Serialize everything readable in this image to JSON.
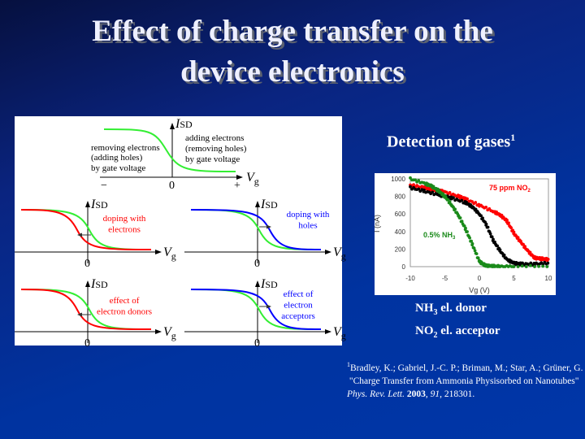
{
  "title": {
    "line1": "Effect of charge transfer on the",
    "line2": "device electronics"
  },
  "diagram": {
    "top": {
      "ylabel": "I",
      "ysub": "SD",
      "xlabel": "V",
      "xsub": "g",
      "minus": "−",
      "zero": "0",
      "plus": "+",
      "left_text": [
        "removing electrons",
        "(adding holes)",
        "by gate voltage"
      ],
      "right_text": [
        "adding electrons",
        "(removing holes)",
        "by gate voltage"
      ]
    },
    "panels": [
      {
        "label": [
          "doping with",
          "electrons"
        ],
        "label_color": "#ff0000",
        "shift_color": "#ff0000"
      },
      {
        "label": [
          "doping with",
          "holes"
        ],
        "label_color": "#0000ff",
        "shift_color": "#0000ff"
      },
      {
        "label": [
          "effect of",
          "electron donors"
        ],
        "label_color": "#ff0000",
        "shift_color": "#ff0000"
      },
      {
        "label": [
          "effect of",
          "electron",
          "acceptors"
        ],
        "label_color": "#0000ff",
        "shift_color": "#0000ff"
      }
    ],
    "axis": {
      "ylabel": "I",
      "ysub": "SD",
      "xlabel": "V",
      "xsub": "g",
      "zero": "0"
    }
  },
  "detection": {
    "heading": "Detection of gases",
    "sup": "1"
  },
  "chart_data": {
    "type": "scatter",
    "xlabel": "Vg (V)",
    "ylabel": "I (nA)",
    "xlim": [
      -10,
      10
    ],
    "ylim": [
      0,
      1000
    ],
    "xticks": [
      "-10",
      "-5",
      "0",
      "5",
      "10"
    ],
    "yticks": [
      "0",
      "200",
      "400",
      "600",
      "800",
      "1000"
    ],
    "annotations": [
      {
        "text": "75 ppm NO",
        "sub": "2",
        "color": "#ff0000"
      },
      {
        "text": "0.5% NH",
        "sub": "3",
        "color": "#1a8a1a"
      }
    ],
    "series": [
      {
        "color": "#ff0000",
        "x": [
          -10,
          -8,
          -7,
          -6,
          -5,
          -3,
          -2,
          0,
          2,
          3,
          4,
          5,
          6,
          7,
          8,
          9,
          10
        ],
        "y": [
          930,
          900,
          880,
          870,
          850,
          800,
          770,
          700,
          630,
          590,
          520,
          380,
          280,
          180,
          100,
          90,
          80
        ]
      },
      {
        "color": "#000000",
        "x": [
          -10,
          -8,
          -6,
          -5,
          -4,
          -2,
          -1,
          0,
          1,
          2,
          3,
          4,
          5,
          6,
          8,
          10
        ],
        "y": [
          900,
          860,
          820,
          800,
          780,
          730,
          680,
          600,
          480,
          300,
          180,
          80,
          40,
          30,
          30,
          40
        ]
      },
      {
        "color": "#1a8a1a",
        "x": [
          -10,
          -8,
          -7,
          -6,
          -5,
          -4,
          -3,
          -2,
          -1,
          0,
          0.5,
          1,
          2,
          3,
          5,
          10
        ],
        "y": [
          1000,
          950,
          920,
          870,
          800,
          700,
          580,
          430,
          250,
          60,
          30,
          10,
          5,
          0,
          0,
          0
        ]
      }
    ]
  },
  "labels": {
    "nh3": "NH",
    "nh3_sub": "3",
    "nh3_rest": " el. donor",
    "no2": "NO",
    "no2_sub": "2",
    "no2_rest": " el. acceptor"
  },
  "reference": {
    "sup": "1",
    "line1": "Bradley, K.; Gabriel, J.-C. P.; Briman, M.; Star, A.; Grüner, G.",
    "line2": "\"Charge Transfer from Ammonia Physisorbed on Nanotubes\"",
    "journal": "Phys. Rev. Lett.",
    "year": "2003",
    "volume": "91",
    "page": ", 218301."
  }
}
